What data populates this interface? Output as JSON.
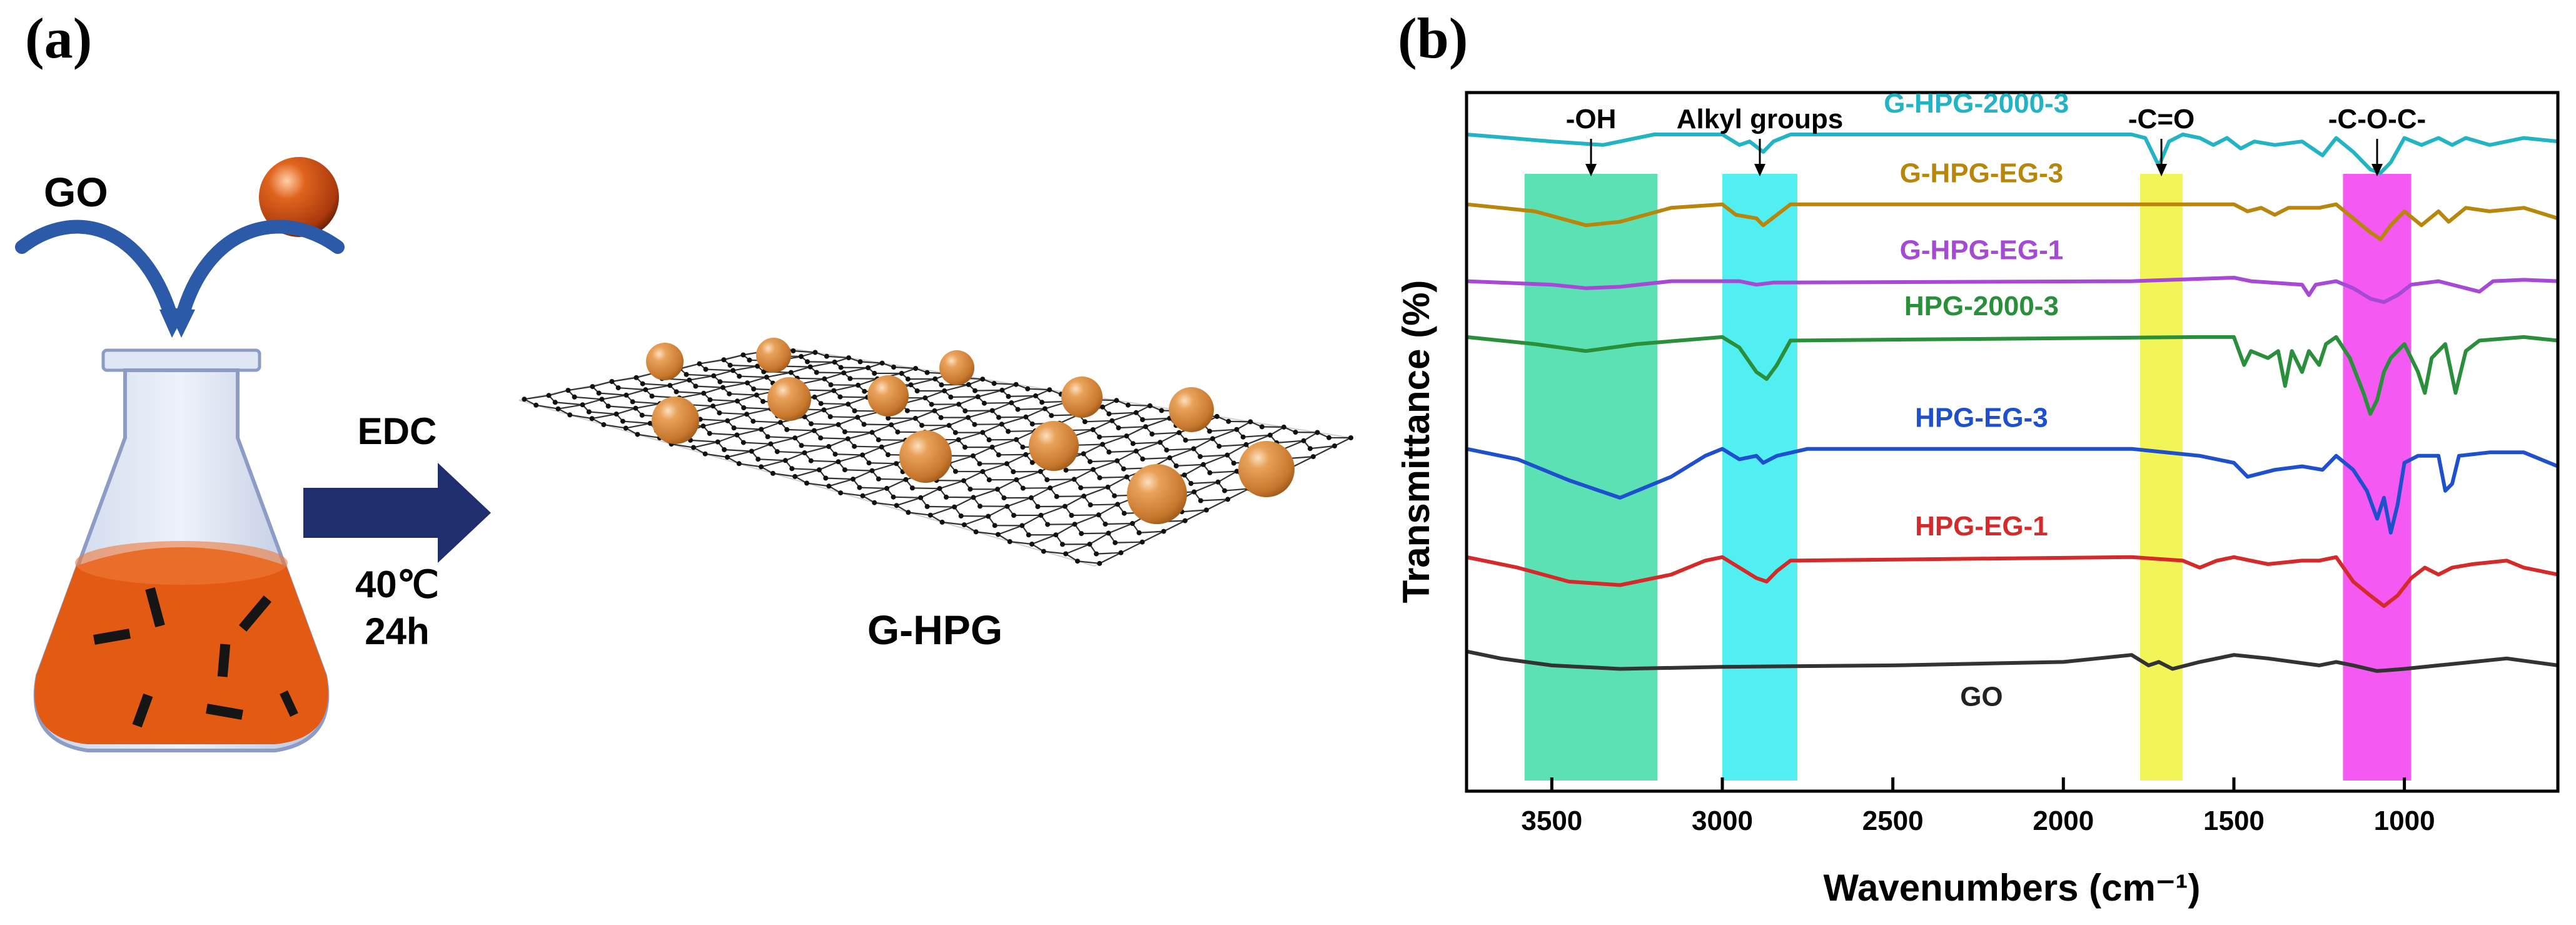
{
  "panel_a": {
    "label": "(a)",
    "reactant_go": "GO",
    "reagent": "EDC",
    "temperature": "40℃",
    "time": "24h",
    "product": "G-HPG",
    "colors": {
      "flask_liquid": "#e35a12",
      "arrow": "#1f2e6e",
      "sphere": "#d8893a",
      "curved_arrow": "#2b5aa8"
    }
  },
  "panel_b": {
    "label": "(b)",
    "chart_data": {
      "type": "line",
      "title": "",
      "xlabel": "Wavenumbers (cm⁻¹)",
      "ylabel": "Transmittance (%)",
      "xlim": [
        3750,
        550
      ],
      "x_reversed": true,
      "y_ticks_shown": false,
      "xticks": [
        3500,
        3000,
        2500,
        2000,
        1500,
        1000
      ],
      "xtick_labels": [
        "3500",
        "3000",
        "2500",
        "2000",
        "1500",
        "1000"
      ],
      "bands": [
        {
          "label": "-OH",
          "range": [
            3580,
            3190
          ],
          "color": "#3fdca8"
        },
        {
          "label": "Alkyl groups",
          "range": [
            3000,
            2780
          ],
          "color": "#33ecee"
        },
        {
          "label": "-C=O",
          "range": [
            1775,
            1650
          ],
          "color": "#f1f23a"
        },
        {
          "label": "-C-O-C-",
          "range": [
            1180,
            980
          ],
          "color": "#f23cf0"
        }
      ],
      "series": [
        {
          "name": "G-HPG-2000-3",
          "color": "#22b3c4",
          "baseline": 0.94,
          "points": [
            [
              3750,
              0.94
            ],
            [
              3500,
              0.93
            ],
            [
              3350,
              0.925
            ],
            [
              3200,
              0.94
            ],
            [
              3000,
              0.94
            ],
            [
              2950,
              0.925
            ],
            [
              2920,
              0.93
            ],
            [
              2880,
              0.915
            ],
            [
              2850,
              0.93
            ],
            [
              2800,
              0.94
            ],
            [
              1800,
              0.94
            ],
            [
              1760,
              0.935
            ],
            [
              1720,
              0.895
            ],
            [
              1690,
              0.93
            ],
            [
              1650,
              0.94
            ],
            [
              1600,
              0.935
            ],
            [
              1560,
              0.925
            ],
            [
              1520,
              0.935
            ],
            [
              1480,
              0.92
            ],
            [
              1440,
              0.93
            ],
            [
              1380,
              0.925
            ],
            [
              1300,
              0.93
            ],
            [
              1240,
              0.91
            ],
            [
              1200,
              0.935
            ],
            [
              1150,
              0.915
            ],
            [
              1100,
              0.89
            ],
            [
              1070,
              0.885
            ],
            [
              1040,
              0.9
            ],
            [
              1000,
              0.935
            ],
            [
              950,
              0.925
            ],
            [
              900,
              0.935
            ],
            [
              860,
              0.925
            ],
            [
              820,
              0.935
            ],
            [
              750,
              0.925
            ],
            [
              650,
              0.935
            ],
            [
              550,
              0.93
            ]
          ]
        },
        {
          "name": "G-HPG-EG-3",
          "color": "#b8860b",
          "baseline": 0.84,
          "points": [
            [
              3750,
              0.84
            ],
            [
              3550,
              0.83
            ],
            [
              3400,
              0.81
            ],
            [
              3300,
              0.815
            ],
            [
              3150,
              0.835
            ],
            [
              3000,
              0.84
            ],
            [
              2960,
              0.825
            ],
            [
              2900,
              0.82
            ],
            [
              2880,
              0.81
            ],
            [
              2840,
              0.825
            ],
            [
              2800,
              0.84
            ],
            [
              1500,
              0.84
            ],
            [
              1460,
              0.83
            ],
            [
              1420,
              0.835
            ],
            [
              1380,
              0.825
            ],
            [
              1340,
              0.835
            ],
            [
              1250,
              0.835
            ],
            [
              1200,
              0.84
            ],
            [
              1150,
              0.82
            ],
            [
              1100,
              0.8
            ],
            [
              1070,
              0.79
            ],
            [
              1040,
              0.81
            ],
            [
              1000,
              0.83
            ],
            [
              950,
              0.81
            ],
            [
              900,
              0.83
            ],
            [
              870,
              0.815
            ],
            [
              820,
              0.835
            ],
            [
              750,
              0.83
            ],
            [
              650,
              0.835
            ],
            [
              550,
              0.82
            ]
          ]
        },
        {
          "name": "G-HPG-EG-1",
          "color": "#a64ad6",
          "baseline": 0.73,
          "points": [
            [
              3750,
              0.73
            ],
            [
              3500,
              0.725
            ],
            [
              3400,
              0.72
            ],
            [
              3300,
              0.722
            ],
            [
              3150,
              0.73
            ],
            [
              2950,
              0.73
            ],
            [
              2900,
              0.725
            ],
            [
              2850,
              0.728
            ],
            [
              1800,
              0.73
            ],
            [
              1500,
              0.735
            ],
            [
              1450,
              0.73
            ],
            [
              1300,
              0.725
            ],
            [
              1280,
              0.71
            ],
            [
              1260,
              0.725
            ],
            [
              1200,
              0.73
            ],
            [
              1150,
              0.72
            ],
            [
              1100,
              0.705
            ],
            [
              1060,
              0.7
            ],
            [
              1020,
              0.71
            ],
            [
              980,
              0.725
            ],
            [
              900,
              0.73
            ],
            [
              820,
              0.72
            ],
            [
              780,
              0.715
            ],
            [
              740,
              0.73
            ],
            [
              650,
              0.732
            ],
            [
              550,
              0.73
            ]
          ]
        },
        {
          "name": "HPG-2000-3",
          "color": "#2a8f3a",
          "baseline": 0.65,
          "points": [
            [
              3750,
              0.65
            ],
            [
              3550,
              0.64
            ],
            [
              3400,
              0.63
            ],
            [
              3250,
              0.64
            ],
            [
              3000,
              0.65
            ],
            [
              2950,
              0.635
            ],
            [
              2900,
              0.6
            ],
            [
              2870,
              0.59
            ],
            [
              2840,
              0.61
            ],
            [
              2800,
              0.645
            ],
            [
              1600,
              0.65
            ],
            [
              1500,
              0.65
            ],
            [
              1470,
              0.61
            ],
            [
              1450,
              0.63
            ],
            [
              1400,
              0.62
            ],
            [
              1370,
              0.63
            ],
            [
              1350,
              0.58
            ],
            [
              1330,
              0.63
            ],
            [
              1300,
              0.6
            ],
            [
              1280,
              0.63
            ],
            [
              1250,
              0.61
            ],
            [
              1230,
              0.64
            ],
            [
              1200,
              0.65
            ],
            [
              1160,
              0.62
            ],
            [
              1120,
              0.57
            ],
            [
              1100,
              0.54
            ],
            [
              1080,
              0.56
            ],
            [
              1060,
              0.6
            ],
            [
              1040,
              0.62
            ],
            [
              1000,
              0.64
            ],
            [
              960,
              0.6
            ],
            [
              940,
              0.57
            ],
            [
              920,
              0.62
            ],
            [
              880,
              0.64
            ],
            [
              850,
              0.57
            ],
            [
              820,
              0.63
            ],
            [
              780,
              0.645
            ],
            [
              650,
              0.65
            ],
            [
              550,
              0.645
            ]
          ]
        },
        {
          "name": "HPG-EG-3",
          "color": "#1e4fcc",
          "baseline": 0.49,
          "points": [
            [
              3750,
              0.49
            ],
            [
              3600,
              0.475
            ],
            [
              3450,
              0.445
            ],
            [
              3300,
              0.42
            ],
            [
              3150,
              0.45
            ],
            [
              3050,
              0.48
            ],
            [
              3000,
              0.49
            ],
            [
              2950,
              0.475
            ],
            [
              2900,
              0.48
            ],
            [
              2880,
              0.47
            ],
            [
              2840,
              0.48
            ],
            [
              2750,
              0.49
            ],
            [
              1800,
              0.49
            ],
            [
              1600,
              0.48
            ],
            [
              1500,
              0.47
            ],
            [
              1460,
              0.45
            ],
            [
              1380,
              0.46
            ],
            [
              1300,
              0.465
            ],
            [
              1240,
              0.46
            ],
            [
              1200,
              0.48
            ],
            [
              1150,
              0.46
            ],
            [
              1110,
              0.43
            ],
            [
              1080,
              0.39
            ],
            [
              1060,
              0.42
            ],
            [
              1040,
              0.37
            ],
            [
              1020,
              0.41
            ],
            [
              1000,
              0.47
            ],
            [
              960,
              0.48
            ],
            [
              900,
              0.48
            ],
            [
              880,
              0.43
            ],
            [
              860,
              0.44
            ],
            [
              840,
              0.48
            ],
            [
              750,
              0.485
            ],
            [
              650,
              0.485
            ],
            [
              550,
              0.465
            ]
          ]
        },
        {
          "name": "HPG-EG-1",
          "color": "#d42a2a",
          "baseline": 0.335,
          "points": [
            [
              3750,
              0.335
            ],
            [
              3600,
              0.32
            ],
            [
              3450,
              0.3
            ],
            [
              3300,
              0.295
            ],
            [
              3150,
              0.31
            ],
            [
              3050,
              0.33
            ],
            [
              3000,
              0.335
            ],
            [
              2950,
              0.32
            ],
            [
              2900,
              0.305
            ],
            [
              2870,
              0.3
            ],
            [
              2840,
              0.315
            ],
            [
              2800,
              0.33
            ],
            [
              1800,
              0.335
            ],
            [
              1650,
              0.33
            ],
            [
              1600,
              0.32
            ],
            [
              1550,
              0.33
            ],
            [
              1500,
              0.335
            ],
            [
              1450,
              0.33
            ],
            [
              1400,
              0.325
            ],
            [
              1300,
              0.33
            ],
            [
              1250,
              0.33
            ],
            [
              1200,
              0.335
            ],
            [
              1150,
              0.3
            ],
            [
              1100,
              0.28
            ],
            [
              1060,
              0.265
            ],
            [
              1020,
              0.28
            ],
            [
              980,
              0.305
            ],
            [
              940,
              0.32
            ],
            [
              900,
              0.31
            ],
            [
              860,
              0.32
            ],
            [
              800,
              0.325
            ],
            [
              700,
              0.33
            ],
            [
              650,
              0.32
            ],
            [
              550,
              0.31
            ]
          ]
        },
        {
          "name": "GO",
          "color": "#333333",
          "baseline": 0.185,
          "points": [
            [
              3750,
              0.2
            ],
            [
              3650,
              0.19
            ],
            [
              3500,
              0.18
            ],
            [
              3300,
              0.175
            ],
            [
              3000,
              0.178
            ],
            [
              2500,
              0.18
            ],
            [
              2000,
              0.185
            ],
            [
              1800,
              0.195
            ],
            [
              1750,
              0.18
            ],
            [
              1720,
              0.185
            ],
            [
              1680,
              0.175
            ],
            [
              1600,
              0.185
            ],
            [
              1500,
              0.195
            ],
            [
              1400,
              0.19
            ],
            [
              1250,
              0.18
            ],
            [
              1200,
              0.185
            ],
            [
              1150,
              0.18
            ],
            [
              1080,
              0.172
            ],
            [
              1000,
              0.175
            ],
            [
              900,
              0.18
            ],
            [
              800,
              0.185
            ],
            [
              700,
              0.19
            ],
            [
              550,
              0.18
            ]
          ]
        }
      ]
    }
  }
}
